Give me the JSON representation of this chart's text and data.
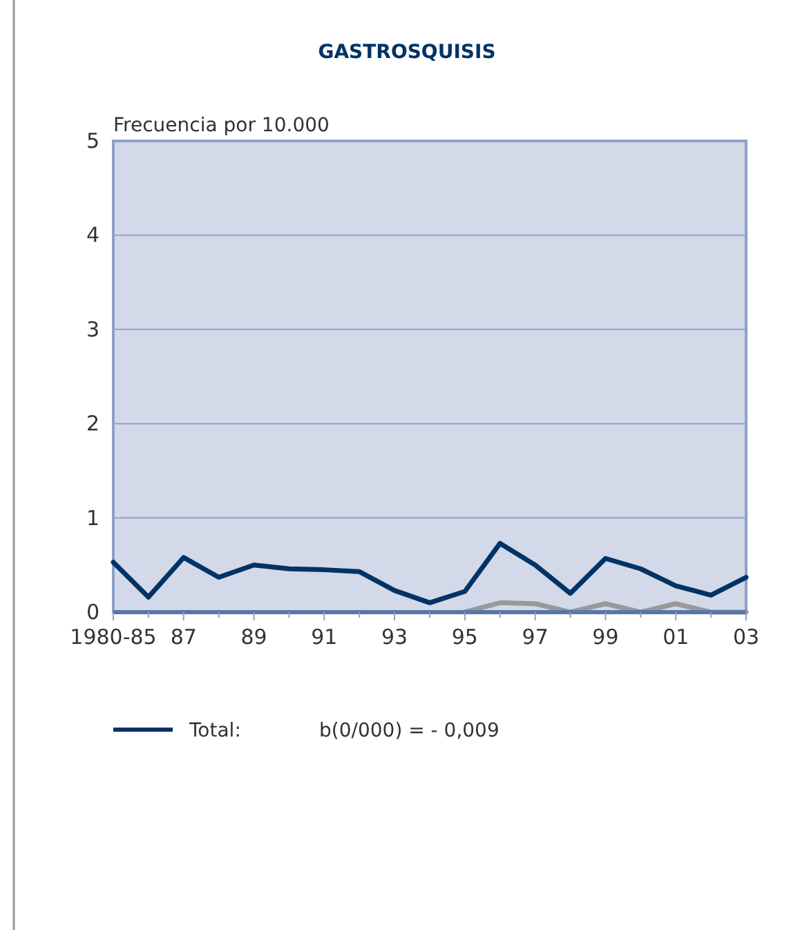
{
  "chart_data": {
    "type": "line",
    "title": "GASTROSQUISIS",
    "ylabel": "Frecuencia por 10.000",
    "categories": [
      "1980-85",
      null,
      "87",
      null,
      "89",
      null,
      "91",
      null,
      "93",
      null,
      "95",
      null,
      "97",
      null,
      "99",
      null,
      "01",
      null,
      "03"
    ],
    "series": [
      {
        "name": "Total:",
        "color": "#003366",
        "values": [
          0.53,
          0.16,
          0.58,
          0.37,
          0.5,
          0.46,
          0.45,
          0.43,
          0.23,
          0.1,
          0.22,
          0.73,
          0.5,
          0.2,
          0.57,
          0.46,
          0.28,
          0.18,
          0.37
        ]
      },
      {
        "color": "#999999",
        "values": [
          null,
          null,
          null,
          null,
          null,
          null,
          null,
          null,
          null,
          null,
          0,
          0.1,
          0.09,
          0,
          0.09,
          0,
          0.09,
          0,
          0
        ]
      }
    ],
    "ylim": [
      0,
      5
    ],
    "yticks": [
      0,
      1,
      2,
      3,
      4,
      5
    ],
    "grid": "y",
    "legend": "bottom",
    "line_style": "solid",
    "annotations": [
      "b(0/000) = - 0,009"
    ]
  }
}
